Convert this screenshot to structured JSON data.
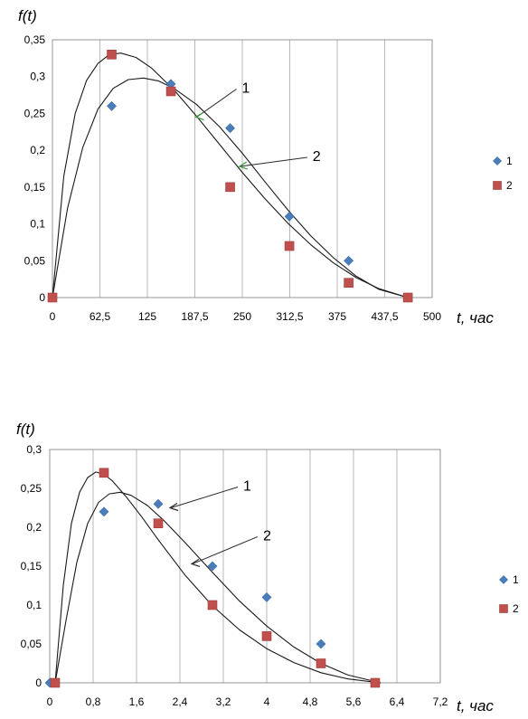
{
  "chart_data": [
    {
      "type": "scatter",
      "ylabel": "f(t)",
      "xlabel": "t, час",
      "x_ticks": [
        "0",
        "62,5",
        "125",
        "187,5",
        "250",
        "312,5",
        "375",
        "437,5",
        "500"
      ],
      "y_ticks": [
        "0",
        "0,05",
        "0,1",
        "0,15",
        "0,2",
        "0,25",
        "0,3",
        "0,35"
      ],
      "xlim": [
        0,
        500
      ],
      "ylim": [
        0,
        0.35
      ],
      "grid": "vertical",
      "legend_position": "right",
      "legend": [
        "1",
        "2"
      ],
      "series": [
        {
          "name": "1",
          "marker": "diamond",
          "color": "#4a7ebb",
          "x": [
            0,
            78,
            156,
            234,
            312,
            390,
            468
          ],
          "y": [
            0,
            0.26,
            0.29,
            0.23,
            0.11,
            0.05,
            0
          ]
        },
        {
          "name": "2",
          "marker": "square",
          "color": "#c0504d",
          "x": [
            0,
            78,
            156,
            234,
            312,
            390,
            468
          ],
          "y": [
            0,
            0.33,
            0.28,
            0.15,
            0.07,
            0.02,
            0
          ]
        }
      ],
      "curves": [
        {
          "label": "1",
          "x": [
            0,
            20,
            40,
            60,
            80,
            100,
            120,
            140,
            160,
            190,
            220,
            250,
            280,
            310,
            340,
            370,
            400,
            430,
            468
          ],
          "y": [
            0,
            0.122,
            0.204,
            0.256,
            0.284,
            0.296,
            0.298,
            0.294,
            0.284,
            0.262,
            0.232,
            0.196,
            0.157,
            0.119,
            0.084,
            0.054,
            0.029,
            0.011,
            0
          ]
        },
        {
          "label": "2",
          "x": [
            0,
            15,
            30,
            45,
            60,
            75,
            90,
            110,
            130,
            160,
            190,
            220,
            250,
            280,
            310,
            340,
            370,
            400,
            430,
            468
          ],
          "y": [
            0,
            0.165,
            0.25,
            0.295,
            0.318,
            0.33,
            0.332,
            0.326,
            0.312,
            0.282,
            0.246,
            0.208,
            0.17,
            0.134,
            0.101,
            0.072,
            0.047,
            0.027,
            0.012,
            0
          ]
        }
      ],
      "annotations": [
        {
          "text": "1",
          "point_x": 187.5,
          "point_y": 0.245
        },
        {
          "text": "2",
          "point_x": 245,
          "point_y": 0.178
        }
      ]
    },
    {
      "type": "scatter",
      "ylabel": "f(t)",
      "xlabel": "t, час",
      "x_ticks": [
        "0",
        "0,8",
        "1,6",
        "2,4",
        "3,2",
        "4",
        "4,8",
        "5,6",
        "6,4",
        "7,2"
      ],
      "y_ticks": [
        "0",
        "0,05",
        "0,1",
        "0,15",
        "0,2",
        "0,25",
        "0,3"
      ],
      "xlim": [
        0,
        7.2
      ],
      "ylim": [
        0,
        0.3
      ],
      "grid": "vertical",
      "legend_position": "right",
      "legend": [
        "1",
        "2"
      ],
      "series": [
        {
          "name": "1",
          "marker": "diamond",
          "color": "#4a7ebb",
          "x": [
            0,
            1,
            2,
            3,
            4,
            5,
            6
          ],
          "y": [
            0,
            0.22,
            0.23,
            0.15,
            0.11,
            0.05,
            0
          ]
        },
        {
          "name": "2",
          "marker": "square",
          "color": "#c0504d",
          "x": [
            0.1,
            1,
            2,
            3,
            4,
            5,
            6
          ],
          "y": [
            0,
            0.27,
            0.205,
            0.1,
            0.06,
            0.025,
            0
          ]
        }
      ],
      "curves": [
        {
          "label": "1",
          "x": [
            0.1,
            0.3,
            0.5,
            0.7,
            0.9,
            1.1,
            1.3,
            1.5,
            1.8,
            2.1,
            2.5,
            3.0,
            3.5,
            4.0,
            4.5,
            5.0,
            5.5,
            6.1
          ],
          "y": [
            0,
            0.08,
            0.155,
            0.205,
            0.232,
            0.243,
            0.245,
            0.241,
            0.228,
            0.209,
            0.18,
            0.142,
            0.105,
            0.073,
            0.046,
            0.025,
            0.01,
            0
          ]
        },
        {
          "label": "2",
          "x": [
            0.1,
            0.25,
            0.4,
            0.55,
            0.7,
            0.85,
            1.0,
            1.15,
            1.4,
            1.7,
            2.0,
            2.5,
            3.0,
            3.5,
            4.0,
            4.5,
            5.0,
            5.5,
            6.1
          ],
          "y": [
            0,
            0.125,
            0.205,
            0.245,
            0.264,
            0.271,
            0.268,
            0.26,
            0.24,
            0.213,
            0.184,
            0.138,
            0.099,
            0.068,
            0.044,
            0.026,
            0.013,
            0.005,
            0
          ]
        }
      ],
      "annotations": [
        {
          "text": "1",
          "point_x": 2.2,
          "point_y": 0.225
        },
        {
          "text": "2",
          "point_x": 2.6,
          "point_y": 0.153
        }
      ]
    }
  ]
}
